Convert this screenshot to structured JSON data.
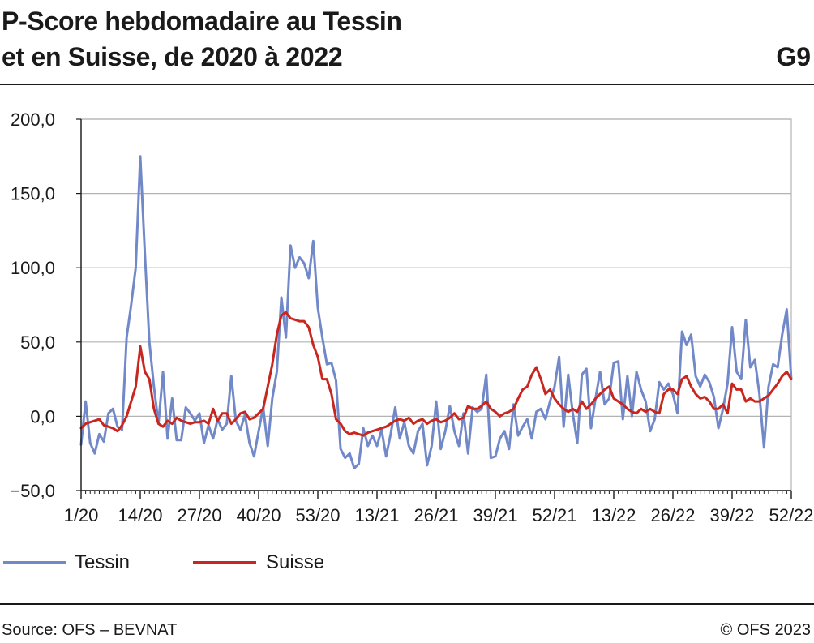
{
  "header": {
    "title_line1": "P-Score hebdomadaire au Tessin",
    "title_line2": "et en Suisse, de 2020 à 2022",
    "figure_number": "G9"
  },
  "footer": {
    "source": "Source: OFS – BEVNAT",
    "copyright": "© OFS 2023"
  },
  "colors": {
    "Tessin": "#7289c9",
    "Suisse": "#c8261e",
    "grid": "#b3b3b3"
  },
  "chart_data": {
    "type": "line",
    "title": "P-Score hebdomadaire au Tessin et en Suisse, de 2020 à 2022",
    "xlabel": "",
    "ylabel": "",
    "ylim": [
      -50,
      200
    ],
    "y_ticks": [
      "−50,0",
      "0,0",
      "50,0",
      "100,0",
      "150,0",
      "200,0"
    ],
    "y_tick_values": [
      -50,
      0,
      50,
      100,
      150,
      200
    ],
    "x_tick_labels": [
      "1/20",
      "14/20",
      "27/20",
      "40/20",
      "53/20",
      "13/21",
      "26/21",
      "39/21",
      "52/21",
      "13/22",
      "26/22",
      "39/22",
      "52/22"
    ],
    "x_tick_weeks": [
      1,
      14,
      27,
      40,
      53,
      66,
      79,
      92,
      105,
      118,
      131,
      144,
      157
    ],
    "x_domain": [
      1,
      157
    ],
    "grid": true,
    "legend_position": "bottom-left",
    "series": [
      {
        "name": "Tessin",
        "color": "#7289c9",
        "values": [
          -19,
          10,
          -18,
          -25,
          -12,
          -17,
          2,
          5,
          -7,
          -9,
          53,
          75,
          100,
          175,
          110,
          50,
          20,
          -5,
          30,
          -15,
          12,
          -16,
          -16,
          6,
          2,
          -3,
          2,
          -18,
          -6,
          -15,
          -2,
          -9,
          -5,
          27,
          -3,
          -9,
          1,
          -18,
          -27,
          -10,
          6,
          -20,
          12,
          30,
          80,
          53,
          115,
          100,
          107,
          103,
          93,
          118,
          73,
          53,
          35,
          36,
          24,
          -22,
          -28,
          -25,
          -35,
          -32,
          -8,
          -20,
          -13,
          -20,
          -9,
          -27,
          -12,
          6,
          -15,
          -4,
          -20,
          -25,
          -10,
          -5,
          -33,
          -20,
          10,
          -22,
          -10,
          7,
          -10,
          -20,
          2,
          -25,
          6,
          3,
          5,
          28,
          -28,
          -27,
          -15,
          -10,
          -22,
          8,
          -13,
          -7,
          -2,
          -15,
          3,
          5,
          -2,
          10,
          20,
          40,
          -7,
          28,
          2,
          -18,
          28,
          32,
          -8,
          12,
          30,
          8,
          12,
          36,
          37,
          -2,
          27,
          0,
          30,
          18,
          10,
          -10,
          -2,
          23,
          18,
          22,
          15,
          2,
          57,
          48,
          55,
          27,
          20,
          28,
          23,
          13,
          -8,
          5,
          22,
          60,
          30,
          25,
          65,
          33,
          38,
          15,
          -21,
          20,
          35,
          33,
          55,
          72,
          25
        ]
      },
      {
        "name": "Suisse",
        "color": "#c8261e",
        "values": [
          -8,
          -5,
          -4,
          -3,
          -2,
          -6,
          -7,
          -8,
          -10,
          -6,
          0,
          10,
          20,
          47,
          30,
          25,
          5,
          -5,
          -7,
          -3,
          -5,
          -1,
          -3,
          -4,
          -5,
          -4,
          -4,
          -3,
          -5,
          5,
          -3,
          2,
          2,
          -5,
          -2,
          2,
          3,
          -2,
          -1,
          2,
          5,
          20,
          35,
          55,
          68,
          70,
          66,
          65,
          64,
          64,
          60,
          48,
          40,
          25,
          25,
          15,
          -2,
          -5,
          -10,
          -12,
          -11,
          -12,
          -13,
          -11,
          -10,
          -9,
          -8,
          -7,
          -5,
          -3,
          -2,
          -3,
          -1,
          -5,
          -3,
          -2,
          -5,
          -3,
          -2,
          -4,
          -3,
          -1,
          2,
          -2,
          -1,
          7,
          5,
          5,
          7,
          10,
          5,
          3,
          0,
          2,
          3,
          5,
          12,
          18,
          20,
          28,
          33,
          25,
          15,
          18,
          12,
          8,
          5,
          3,
          5,
          3,
          10,
          5,
          8,
          12,
          15,
          18,
          20,
          12,
          10,
          8,
          5,
          3,
          2,
          5,
          3,
          5,
          3,
          2,
          15,
          18,
          18,
          15,
          25,
          27,
          20,
          15,
          12,
          13,
          10,
          5,
          5,
          8,
          2,
          22,
          18,
          18,
          10,
          12,
          10,
          10,
          12,
          14,
          18,
          22,
          27,
          30,
          25
        ]
      }
    ]
  }
}
